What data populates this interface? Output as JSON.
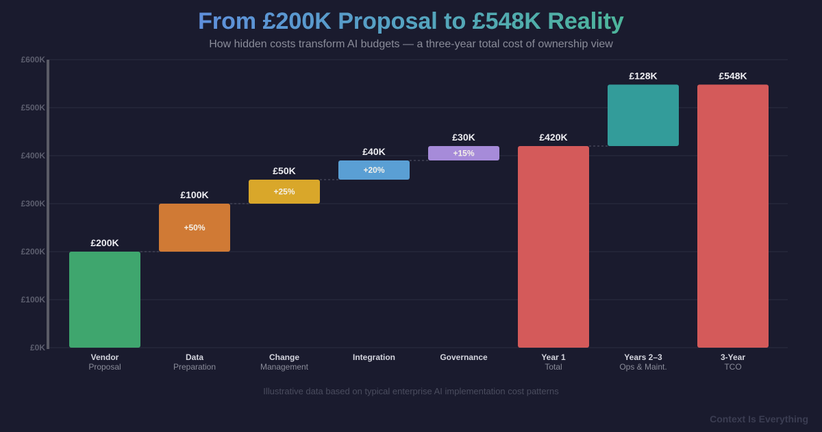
{
  "title": "From £200K Proposal to £548K Reality",
  "subtitle": "How hidden costs transform AI budgets — a three-year total cost of ownership view",
  "footnote": "Illustrative data based on typical enterprise AI implementation cost patterns",
  "brand": "Context Is Everything",
  "chart_data": {
    "type": "waterfall",
    "ylim": [
      0,
      600
    ],
    "yticks": [
      "£0K",
      "£100K",
      "£200K",
      "£300K",
      "£400K",
      "£500K",
      "£600K"
    ],
    "grid": true,
    "categories": [
      {
        "line1": "Vendor",
        "line2": "Proposal"
      },
      {
        "line1": "Data",
        "line2": "Preparation"
      },
      {
        "line1": "Change",
        "line2": "Management"
      },
      {
        "line1": "Integration",
        "line2": ""
      },
      {
        "line1": "Governance",
        "line2": ""
      },
      {
        "line1": "Year 1",
        "line2": "Total"
      },
      {
        "line1": "Years 2–3",
        "line2": "Ops & Maint."
      },
      {
        "line1": "3-Year",
        "line2": "TCO"
      }
    ],
    "bars": [
      {
        "start": 0,
        "end": 200,
        "label": "£200K",
        "pct": "",
        "color": "#3fa66e"
      },
      {
        "start": 200,
        "end": 300,
        "label": "£100K",
        "pct": "+50%",
        "color": "#d07a35"
      },
      {
        "start": 300,
        "end": 350,
        "label": "£50K",
        "pct": "+25%",
        "color": "#d9a72a"
      },
      {
        "start": 350,
        "end": 390,
        "label": "£40K",
        "pct": "+20%",
        "color": "#5a9fd4"
      },
      {
        "start": 390,
        "end": 420,
        "label": "£30K",
        "pct": "+15%",
        "color": "#a68bd9"
      },
      {
        "start": 0,
        "end": 420,
        "label": "£420K",
        "pct": "",
        "color": "#d45a5a"
      },
      {
        "start": 420,
        "end": 548,
        "label": "£128K",
        "pct": "",
        "color": "#339c9a"
      },
      {
        "start": 0,
        "end": 548,
        "label": "£548K",
        "pct": "",
        "color": "#d45a5a"
      }
    ]
  }
}
